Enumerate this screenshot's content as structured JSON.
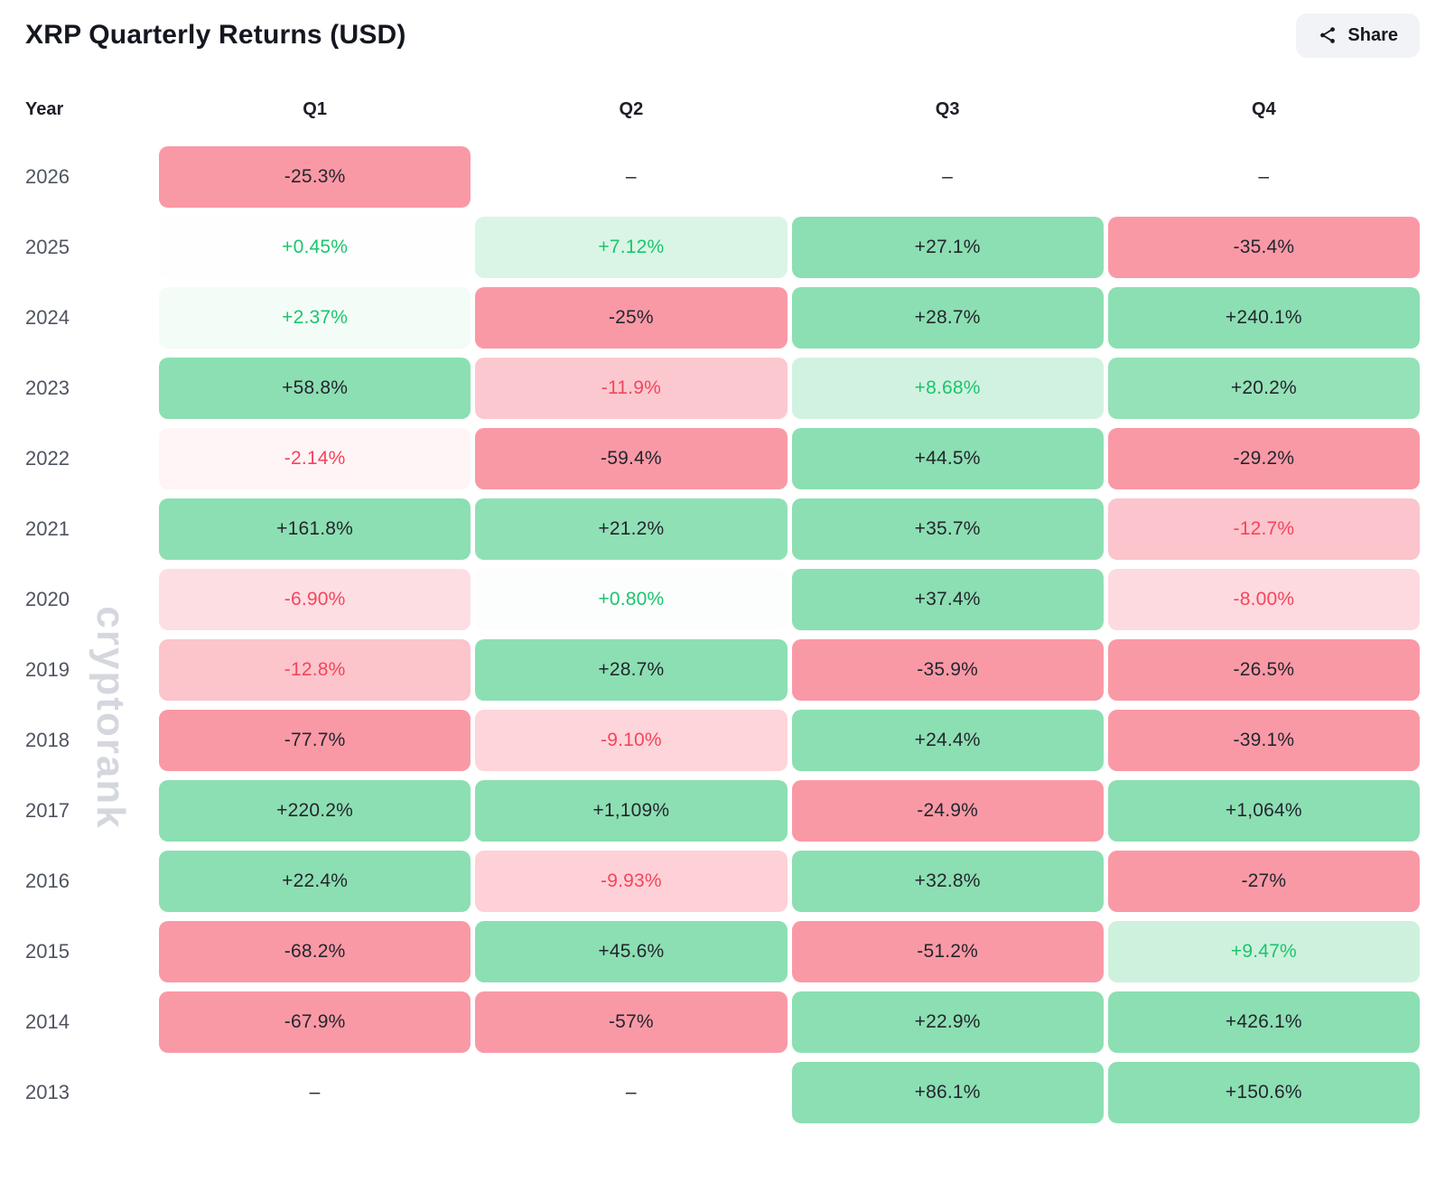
{
  "page": {
    "title": "XRP Quarterly Returns (USD)",
    "share_label": "Share",
    "watermark": "cryptorank"
  },
  "icons": {
    "share": "share-nodes"
  },
  "colors": {
    "green_base": "#2ec573",
    "red_base": "#f6465d",
    "green_text": "#1bc56d",
    "red_text": "#f4455c",
    "dark_text": "#23262e",
    "year_text": "#4e5460",
    "watermark": "#d5d7de",
    "button_bg": "#f2f3f7"
  },
  "chart_data": {
    "type": "heatmap",
    "title": "XRP Quarterly Returns (USD)",
    "unit": "%",
    "columns": [
      "Year",
      "Q1",
      "Q2",
      "Q3",
      "Q4"
    ],
    "rows": [
      {
        "year": "2026",
        "values": [
          -25.3,
          null,
          null,
          null
        ],
        "labels": [
          "-25.3%",
          "–",
          "–",
          "–"
        ]
      },
      {
        "year": "2025",
        "values": [
          0.45,
          7.12,
          27.1,
          -35.4
        ],
        "labels": [
          "+0.45%",
          "+7.12%",
          "+27.1%",
          "-35.4%"
        ]
      },
      {
        "year": "2024",
        "values": [
          2.37,
          -25,
          28.7,
          240.1
        ],
        "labels": [
          "+2.37%",
          "-25%",
          "+28.7%",
          "+240.1%"
        ]
      },
      {
        "year": "2023",
        "values": [
          58.8,
          -11.9,
          8.68,
          20.2
        ],
        "labels": [
          "+58.8%",
          "-11.9%",
          "+8.68%",
          "+20.2%"
        ]
      },
      {
        "year": "2022",
        "values": [
          -2.14,
          -59.4,
          44.5,
          -29.2
        ],
        "labels": [
          "-2.14%",
          "-59.4%",
          "+44.5%",
          "-29.2%"
        ]
      },
      {
        "year": "2021",
        "values": [
          161.8,
          21.2,
          35.7,
          -12.7
        ],
        "labels": [
          "+161.8%",
          "+21.2%",
          "+35.7%",
          "-12.7%"
        ]
      },
      {
        "year": "2020",
        "values": [
          -6.9,
          0.8,
          37.4,
          -8.0
        ],
        "labels": [
          "-6.90%",
          "+0.80%",
          "+37.4%",
          "-8.00%"
        ]
      },
      {
        "year": "2019",
        "values": [
          -12.8,
          28.7,
          -35.9,
          -26.5
        ],
        "labels": [
          "-12.8%",
          "+28.7%",
          "-35.9%",
          "-26.5%"
        ]
      },
      {
        "year": "2018",
        "values": [
          -77.7,
          -9.1,
          24.4,
          -39.1
        ],
        "labels": [
          "-77.7%",
          "-9.10%",
          "+24.4%",
          "-39.1%"
        ]
      },
      {
        "year": "2017",
        "values": [
          220.2,
          1109,
          -24.9,
          1064
        ],
        "labels": [
          "+220.2%",
          "+1,109%",
          "-24.9%",
          "+1,064%"
        ]
      },
      {
        "year": "2016",
        "values": [
          22.4,
          -9.93,
          32.8,
          -27
        ],
        "labels": [
          "+22.4%",
          "-9.93%",
          "+32.8%",
          "-27%"
        ]
      },
      {
        "year": "2015",
        "values": [
          -68.2,
          45.6,
          -51.2,
          9.47
        ],
        "labels": [
          "-68.2%",
          "+45.6%",
          "-51.2%",
          "+9.47%"
        ]
      },
      {
        "year": "2014",
        "values": [
          -67.9,
          -57,
          22.9,
          426.1
        ],
        "labels": [
          "-67.9%",
          "-57%",
          "+22.9%",
          "+426.1%"
        ]
      },
      {
        "year": "2013",
        "values": [
          null,
          null,
          86.1,
          150.6
        ],
        "labels": [
          "–",
          "–",
          "+86.1%",
          "+150.6%"
        ]
      }
    ]
  }
}
